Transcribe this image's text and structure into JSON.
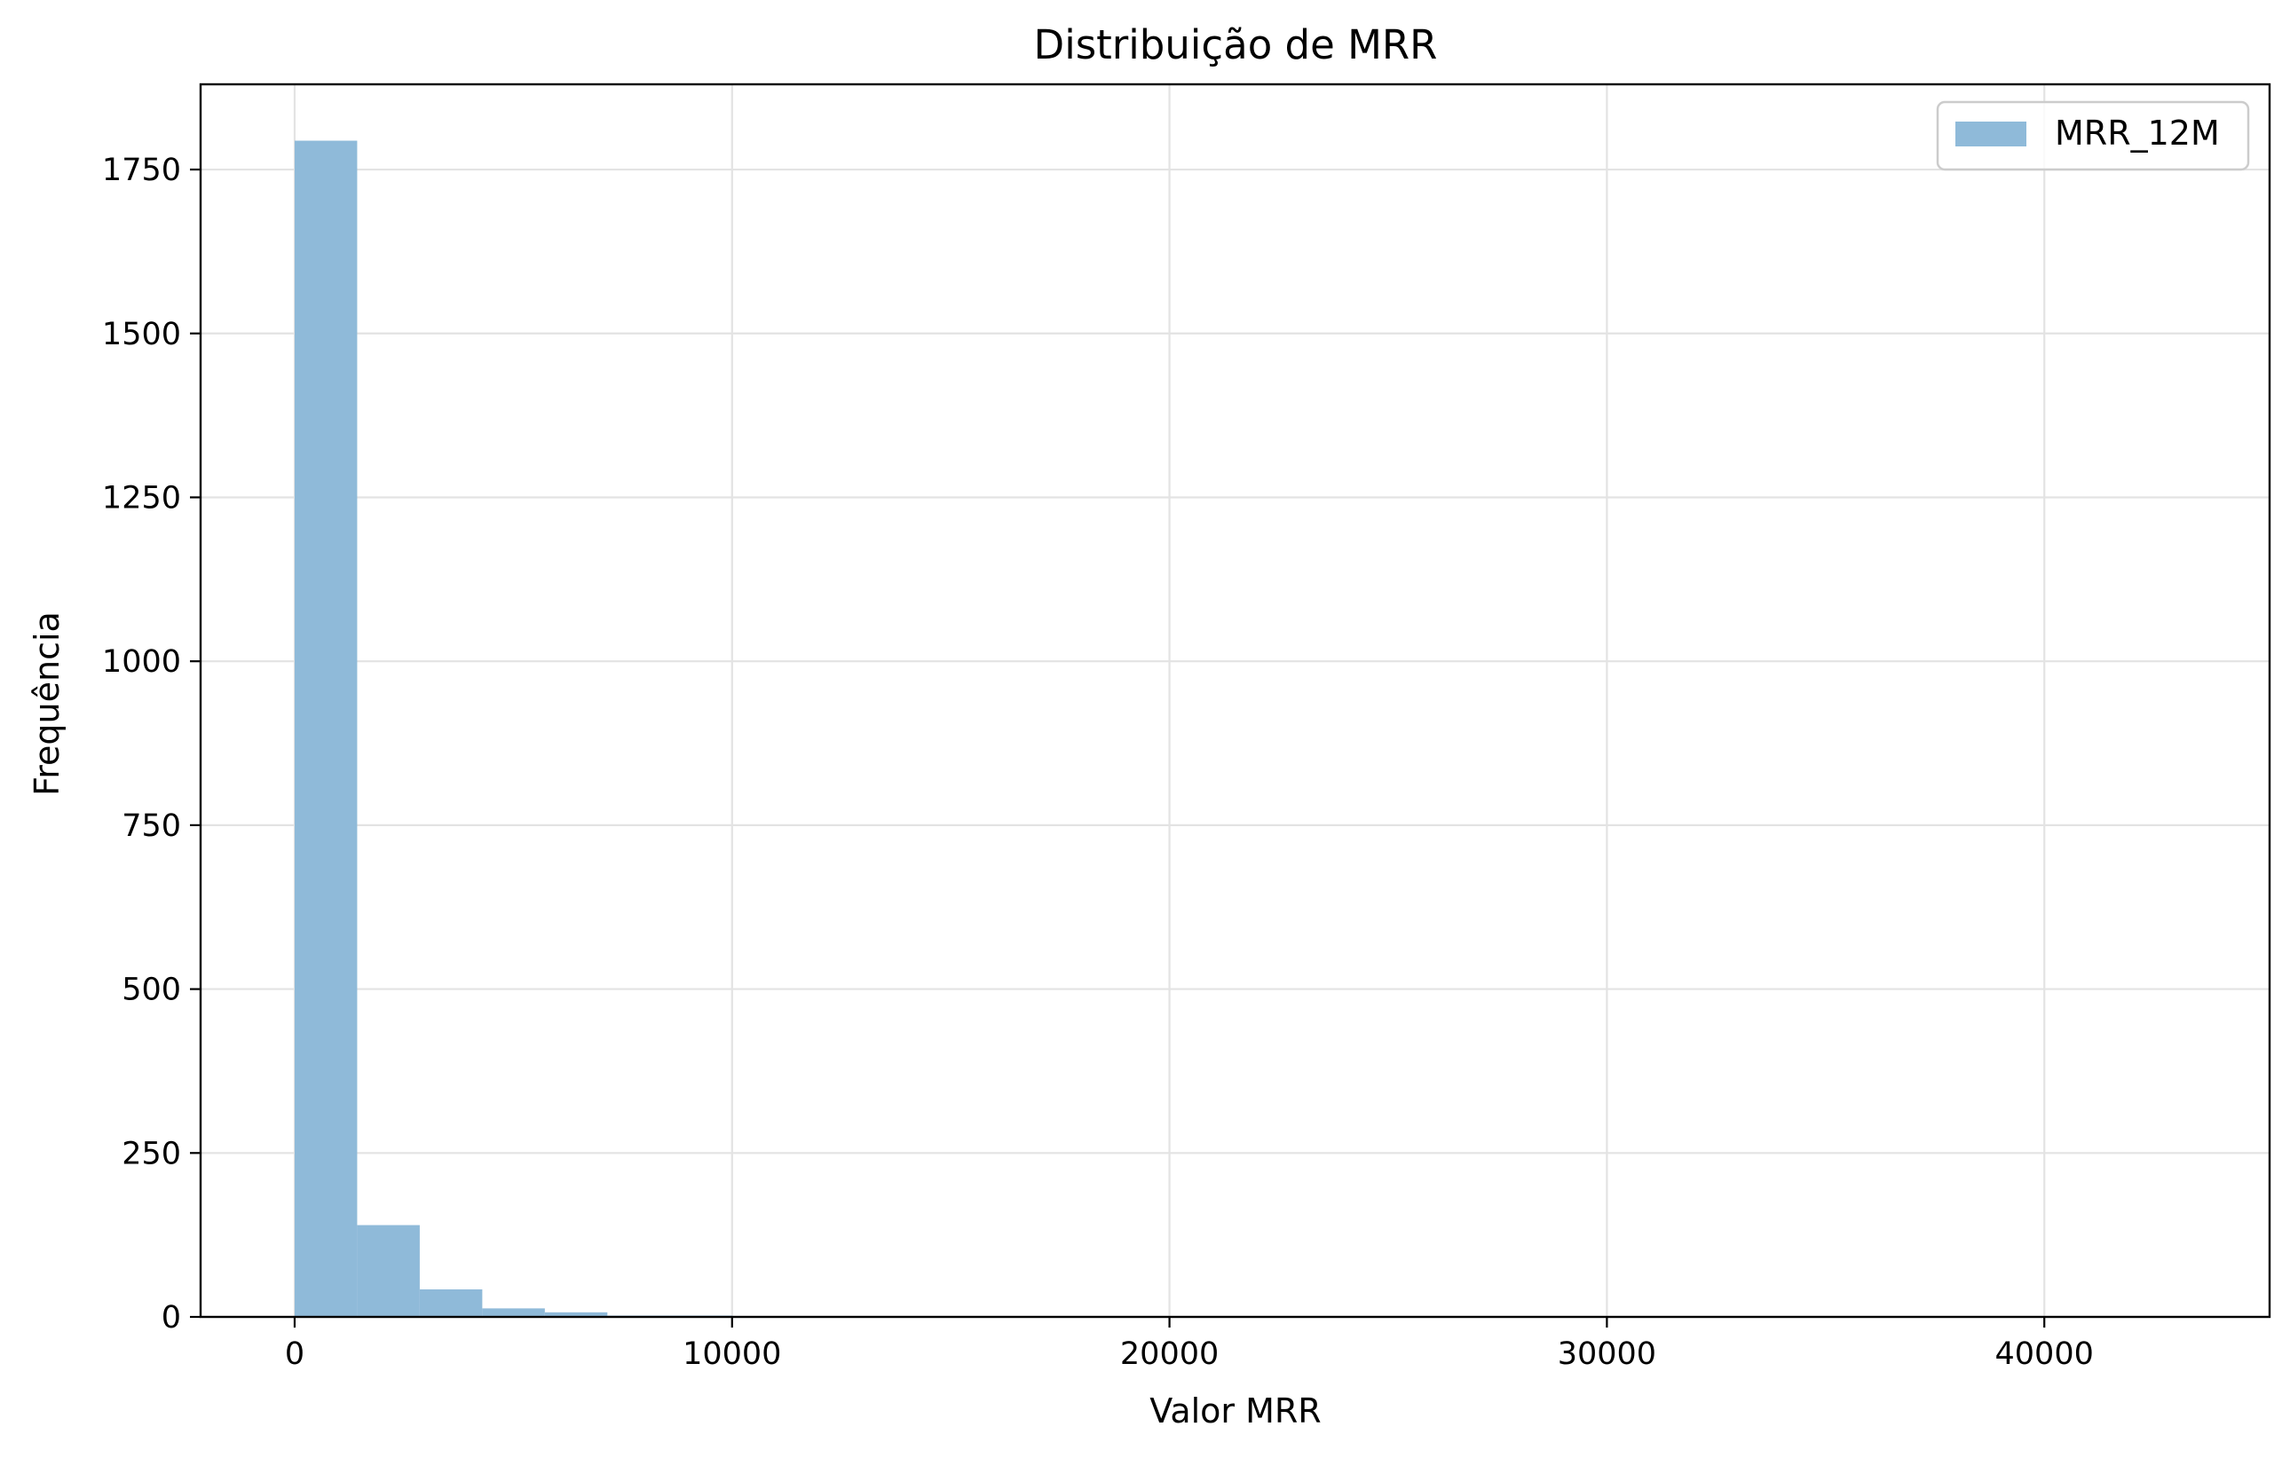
{
  "chart_data": {
    "type": "bar",
    "title": "Distribuição de MRR",
    "xlabel": "Valor MRR",
    "ylabel": "Frequência",
    "xlim": [
      -2150,
      45150
    ],
    "ylim": [
      0,
      1880
    ],
    "x_ticks": [
      0,
      10000,
      20000,
      30000,
      40000
    ],
    "y_ticks": [
      0,
      250,
      500,
      750,
      1000,
      1250,
      1500,
      1750
    ],
    "grid": true,
    "legend_position": "top-right",
    "series": [
      {
        "name": "MRR_12M",
        "color": "#8fbad9",
        "bin_edges": [
          0,
          1430,
          2860,
          4290,
          5720,
          7150,
          8580,
          10010,
          11440,
          12870,
          14300,
          15730,
          17160,
          18590,
          20020,
          21450,
          22880,
          24310,
          25740,
          27170,
          28600,
          30030,
          31460,
          32890,
          34320,
          35750,
          37180,
          38610,
          40040,
          41470,
          42900
        ],
        "values": [
          1794,
          140,
          42,
          13,
          7,
          2,
          2,
          1,
          1,
          1,
          1,
          0,
          1,
          0,
          0,
          0,
          0,
          0,
          0,
          0,
          0,
          0,
          0,
          0,
          0,
          0,
          0,
          0,
          0,
          1
        ]
      }
    ]
  }
}
